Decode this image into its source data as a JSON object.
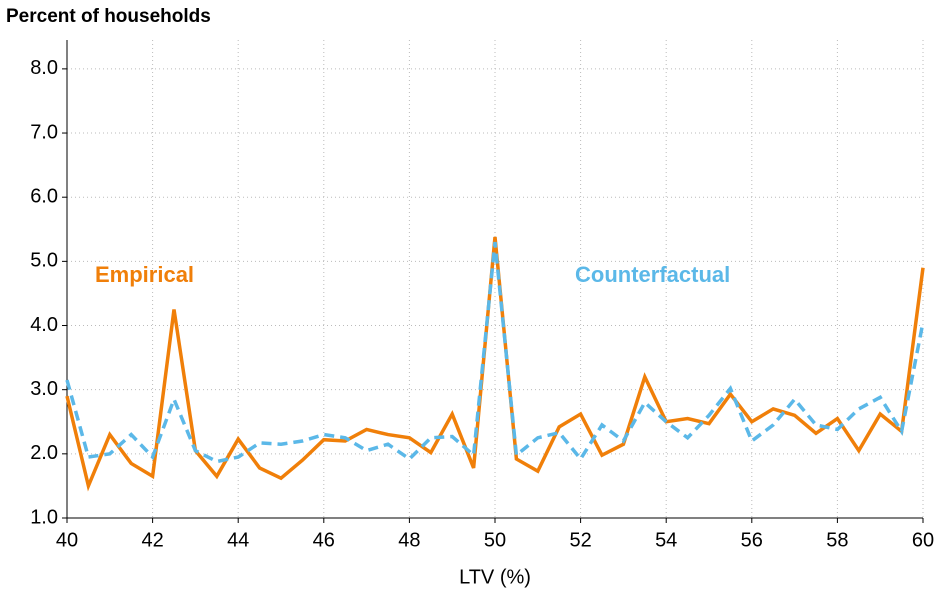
{
  "chart_data": {
    "type": "line",
    "y_label": "Percent of households",
    "x_label": "LTV (%)",
    "x": [
      40,
      40.5,
      41,
      41.5,
      42,
      42.5,
      43,
      43.5,
      44,
      44.5,
      45,
      45.5,
      46,
      46.5,
      47,
      47.5,
      48,
      48.5,
      49,
      49.5,
      50,
      50.5,
      51,
      51.5,
      52,
      52.5,
      53,
      53.5,
      54,
      54.5,
      55,
      55.5,
      56,
      56.5,
      57,
      57.5,
      58,
      58.5,
      59,
      59.5,
      60
    ],
    "series": [
      {
        "name": "Empirical",
        "color": "#f07f09",
        "style": "solid",
        "values": [
          2.9,
          1.5,
          2.3,
          1.85,
          1.65,
          4.25,
          2.05,
          1.65,
          2.23,
          1.78,
          1.62,
          1.9,
          2.22,
          2.2,
          2.38,
          2.3,
          2.25,
          2.02,
          2.62,
          1.78,
          5.38,
          1.92,
          1.73,
          2.42,
          2.62,
          1.98,
          2.15,
          3.2,
          2.5,
          2.55,
          2.47,
          2.93,
          2.5,
          2.7,
          2.6,
          2.32,
          2.55,
          2.05,
          2.62,
          2.35,
          4.9
        ]
      },
      {
        "name": "Counterfactual",
        "color": "#5bb8e8",
        "style": "dashed",
        "values": [
          3.15,
          1.95,
          2.0,
          2.3,
          1.95,
          2.85,
          2.05,
          1.88,
          1.95,
          2.17,
          2.15,
          2.2,
          2.3,
          2.25,
          2.05,
          2.15,
          1.92,
          2.25,
          2.27,
          1.98,
          5.3,
          1.98,
          2.25,
          2.33,
          1.92,
          2.45,
          2.2,
          2.8,
          2.5,
          2.25,
          2.6,
          3.02,
          2.2,
          2.45,
          2.85,
          2.45,
          2.38,
          2.7,
          2.88,
          2.35,
          4.05
        ]
      }
    ],
    "xlim": [
      40,
      60
    ],
    "xticks": [
      40,
      42,
      44,
      46,
      48,
      50,
      52,
      54,
      56,
      58,
      60
    ],
    "ylim": [
      1,
      8.45
    ],
    "yticks": [
      {
        "value": 1,
        "label": "1.0"
      },
      {
        "value": 2,
        "label": "2.0"
      },
      {
        "value": 3,
        "label": "3.0"
      },
      {
        "value": 4,
        "label": "4.0"
      },
      {
        "value": 5,
        "label": "5.0"
      },
      {
        "value": 6,
        "label": "6.0"
      },
      {
        "value": 7,
        "label": "7.0"
      },
      {
        "value": 8,
        "label": "8.0"
      }
    ],
    "grid": true
  }
}
